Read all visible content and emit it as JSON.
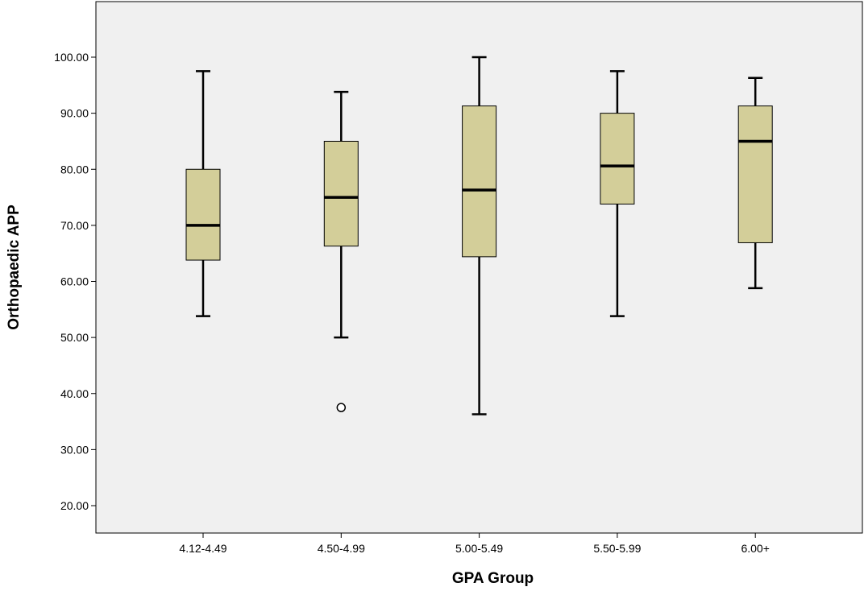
{
  "chart_data": {
    "type": "box",
    "title": "",
    "xlabel": "GPA Group",
    "ylabel": "Orthopaedic APP",
    "ylim": [
      15,
      110
    ],
    "yticks": [
      "20.00",
      "30.00",
      "40.00",
      "50.00",
      "60.00",
      "70.00",
      "80.00",
      "90.00",
      "100.00"
    ],
    "ytick_values": [
      20,
      30,
      40,
      50,
      60,
      70,
      80,
      90,
      100
    ],
    "grid": false,
    "categories": [
      "4.12-4.49",
      "4.50-4.99",
      "5.00-5.49",
      "5.50-5.99",
      "6.00+"
    ],
    "boxes": [
      {
        "min": 53.8,
        "q1": 63.8,
        "median": 70.0,
        "q3": 80.0,
        "max": 97.5,
        "outliers": []
      },
      {
        "min": 50.0,
        "q1": 66.3,
        "median": 75.0,
        "q3": 85.0,
        "max": 93.8,
        "outliers": [
          37.5
        ]
      },
      {
        "min": 36.3,
        "q1": 64.4,
        "median": 76.3,
        "q3": 91.3,
        "max": 100.0,
        "outliers": []
      },
      {
        "min": 53.8,
        "q1": 73.8,
        "median": 80.6,
        "q3": 90.0,
        "max": 97.5,
        "outliers": []
      },
      {
        "min": 58.8,
        "q1": 66.9,
        "median": 85.0,
        "q3": 91.3,
        "max": 96.3,
        "outliers": []
      }
    ],
    "colors": {
      "plot_background": "#f0f0f0",
      "box_fill": "#d3ce99",
      "box_stroke": "#000000",
      "median": "#000000",
      "whisker": "#000000",
      "outlier_stroke": "#000000",
      "outlier_fill": "#ffffff"
    }
  }
}
